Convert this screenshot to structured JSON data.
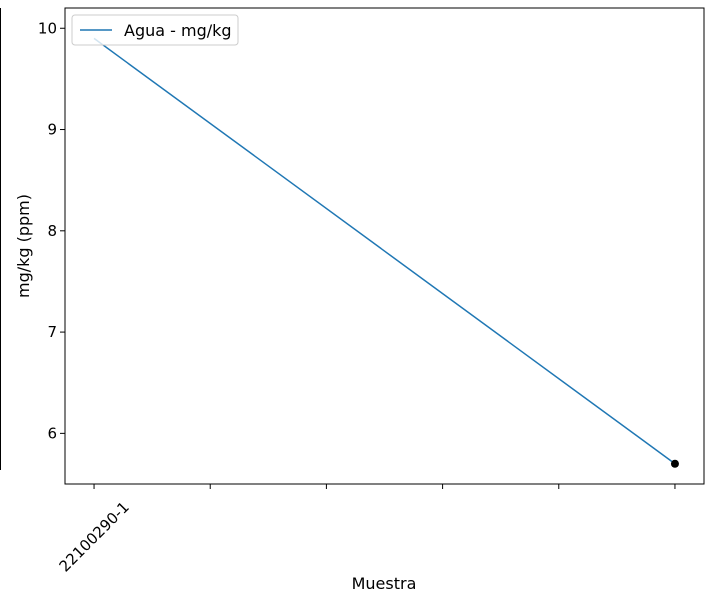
{
  "chart_data": {
    "type": "line",
    "title": "",
    "xlabel": "Muestra",
    "ylabel": "mg/kg (ppm)",
    "x": [
      0,
      5
    ],
    "xticks": [
      0,
      1,
      2,
      3,
      4,
      5
    ],
    "xtick_labels": [
      "22100290-1",
      "",
      "",
      "",
      "",
      ""
    ],
    "xlim": [
      -0.25,
      5.25
    ],
    "ylim": [
      5.5,
      10.2
    ],
    "yticks": [
      6,
      7,
      8,
      9,
      10
    ],
    "ytick_labels": [
      "6",
      "7",
      "8",
      "9",
      "10"
    ],
    "series": [
      {
        "name": "Agua - mg/kg",
        "values": [
          9.9,
          5.7
        ],
        "color": "#1f77b4",
        "markers": "none"
      }
    ],
    "highlight_point": {
      "x": 5,
      "y": 5.7,
      "color": "#000000"
    },
    "legend": "top-left",
    "grid": false
  }
}
